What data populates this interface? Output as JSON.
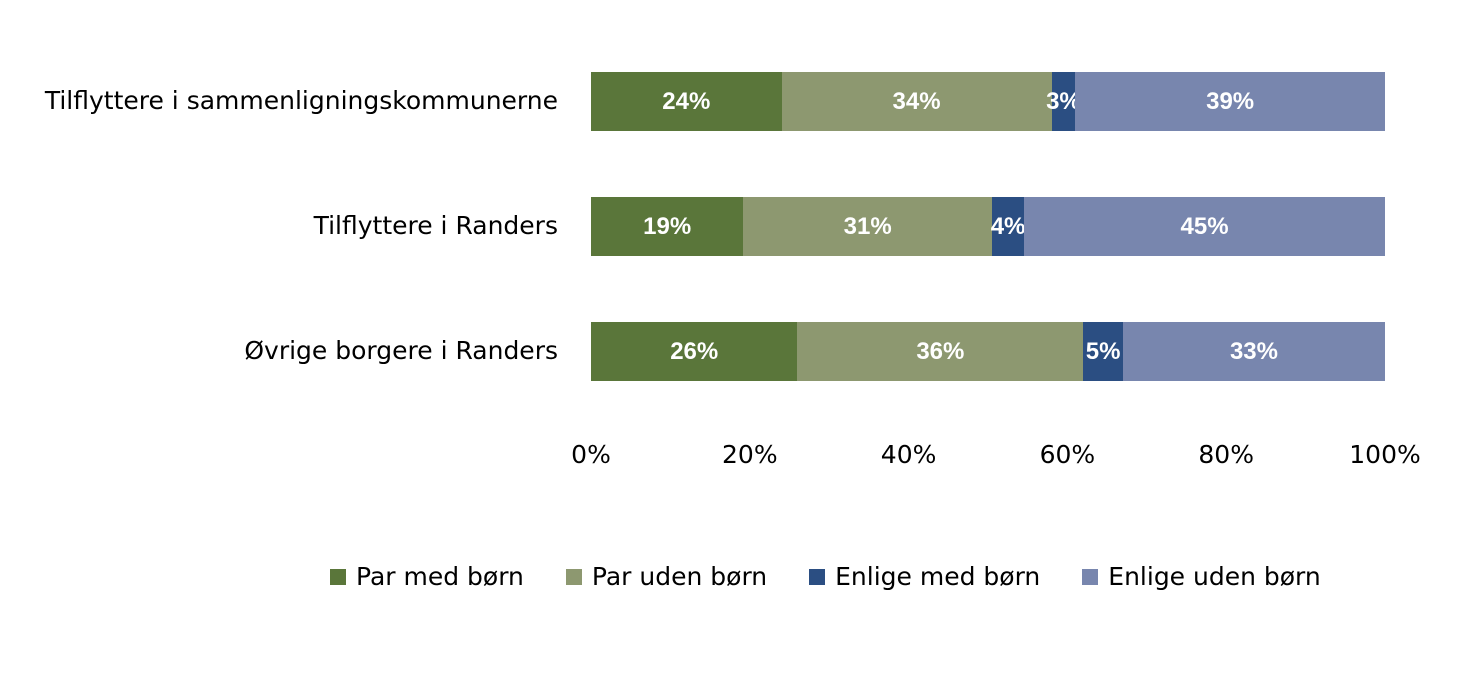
{
  "chart_data": {
    "type": "bar",
    "orientation": "horizontal",
    "stacked": "100%",
    "title": "",
    "xlabel": "",
    "ylabel": "",
    "xlim": [
      0,
      100
    ],
    "x_ticks": [
      "0%",
      "20%",
      "40%",
      "60%",
      "80%",
      "100%"
    ],
    "categories": [
      "Tilflyttere i sammenligningskommunerne",
      "Tilflyttere i Randers",
      "Øvrige borgere i Randers"
    ],
    "series": [
      {
        "name": "Par med børn",
        "color": "#5A763A",
        "values": [
          24,
          19,
          26
        ],
        "labels": [
          "24%",
          "19%",
          "26%"
        ]
      },
      {
        "name": "Par uden børn",
        "color": "#8D9870",
        "values": [
          34,
          31,
          36
        ],
        "labels": [
          "34%",
          "31%",
          "36%"
        ]
      },
      {
        "name": "Enlige med børn",
        "color": "#2B4E82",
        "values": [
          3,
          4,
          5
        ],
        "labels": [
          "3%",
          "4%",
          "5%"
        ]
      },
      {
        "name": "Enlige uden børn",
        "color": "#7886AE",
        "values": [
          39,
          45,
          33
        ],
        "labels": [
          "39%",
          "45%",
          "33%"
        ]
      }
    ],
    "grid": false,
    "legend_position": "bottom"
  }
}
